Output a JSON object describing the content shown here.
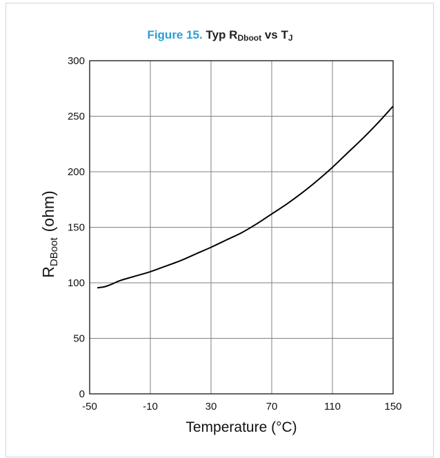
{
  "title": {
    "figure_label": "Figure 15.",
    "text_main": "Typ R",
    "text_sub": "Dboot",
    "text_mid": " vs T",
    "text_sub2": "J"
  },
  "colors": {
    "figure_label": "#2a9fd6",
    "curve": "#000000",
    "grid": "#7f7f7f",
    "frame_border": "#cfd6dc"
  },
  "chart_data": {
    "type": "line",
    "title": "Figure 15. Typ RDboot vs TJ",
    "xlabel": "Temperature (°C)",
    "ylabel_main": "R",
    "ylabel_sub": "DBoot",
    "ylabel_unit": "(ohm)",
    "xlim": [
      -50,
      150
    ],
    "ylim": [
      0,
      300
    ],
    "xticks": [
      -50,
      -10,
      30,
      70,
      110,
      150
    ],
    "yticks": [
      0,
      50,
      100,
      150,
      200,
      250,
      300
    ],
    "grid": true,
    "series": [
      {
        "x": [
          -45,
          -40,
          -35,
          -30,
          -20,
          -10,
          0,
          10,
          20,
          30,
          40,
          50,
          60,
          70,
          80,
          90,
          100,
          110,
          120,
          130,
          140,
          150
        ],
        "y": [
          95.5,
          96.5,
          99,
          102,
          106,
          110,
          115,
          120,
          126,
          132,
          138.5,
          145,
          153,
          162,
          171,
          181,
          192,
          204,
          217,
          230,
          244,
          259
        ]
      }
    ]
  }
}
